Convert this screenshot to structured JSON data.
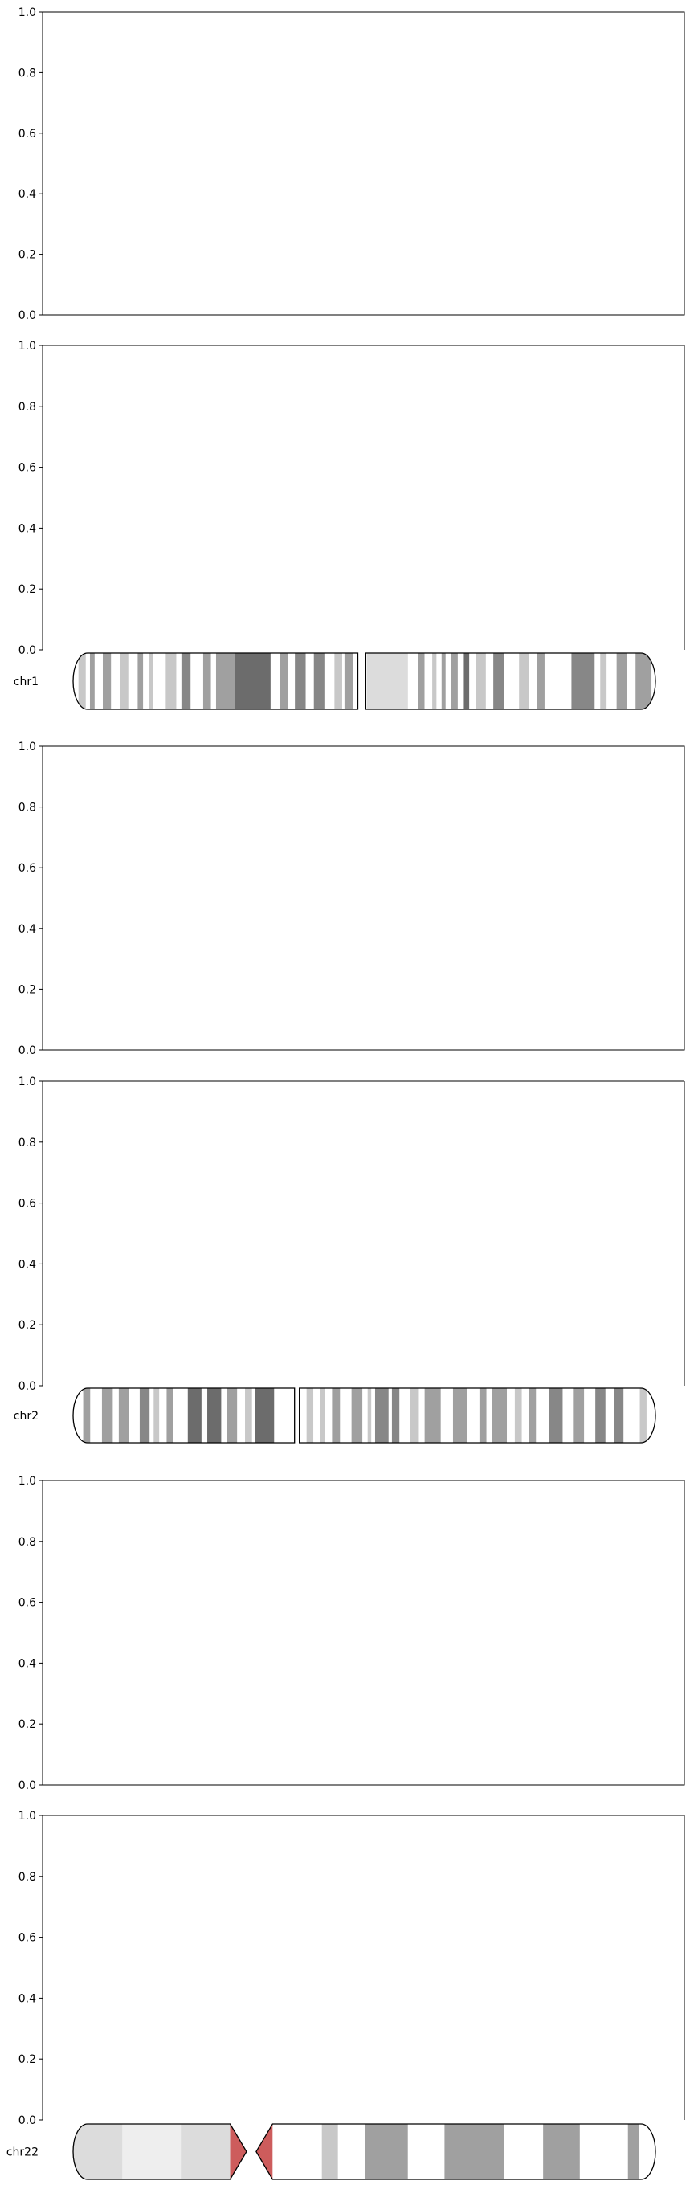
{
  "chart_data": [
    {
      "type": "line",
      "panel": "chr1-upper",
      "series": [],
      "ylim": [
        0,
        1
      ],
      "yticks": [
        "0.0",
        "0.2",
        "0.4",
        "0.6",
        "0.8",
        "1.0"
      ],
      "grid": false
    },
    {
      "type": "line",
      "panel": "chr1-lower",
      "series": [],
      "ylim": [
        0,
        1
      ],
      "yticks": [
        "0.0",
        "0.2",
        "0.4",
        "0.6",
        "0.8",
        "1.0"
      ],
      "grid": false,
      "ideogram": {
        "label": "chr1",
        "length": 248.9,
        "centromere": [
          121.7,
          125.1
        ],
        "bands": [
          [
            2.3,
            5.4,
            "gpos25"
          ],
          [
            7.2,
            9.2,
            "gpos50"
          ],
          [
            12.7,
            16.2,
            "gpos50"
          ],
          [
            20.0,
            23.6,
            "gpos25"
          ],
          [
            27.6,
            29.9,
            "gpos50"
          ],
          [
            32.3,
            34.3,
            "gpos25"
          ],
          [
            39.6,
            44.1,
            "gpos25"
          ],
          [
            46.3,
            50.2,
            "gpos75"
          ],
          [
            55.6,
            58.9,
            "gpos50"
          ],
          [
            61.1,
            72.8,
            "gpos50"
          ],
          [
            69.3,
            84.4,
            "gpos100"
          ],
          [
            88.3,
            91.7,
            "gpos50"
          ],
          [
            94.8,
            99.4,
            "gpos75"
          ],
          [
            102.9,
            107.4,
            "gpos75"
          ],
          [
            111.7,
            115.0,
            "gpos25"
          ],
          [
            116.0,
            119.6,
            "gpos50"
          ],
          [
            125.6,
            143.1,
            "gvar"
          ],
          [
            147.5,
            150.2,
            "gpos50"
          ],
          [
            153.5,
            155.3,
            "gpos25"
          ],
          [
            157.5,
            159.2,
            "gpos50"
          ],
          [
            161.7,
            164.4,
            "gpos50"
          ],
          [
            167.0,
            169.3,
            "gpos100"
          ],
          [
            172.1,
            176.4,
            "gpos25"
          ],
          [
            179.6,
            184.2,
            "gpos75"
          ],
          [
            190.6,
            194.9,
            "gpos25"
          ],
          [
            198.3,
            201.5,
            "gpos50"
          ],
          [
            213.0,
            222.9,
            "gpos75"
          ],
          [
            225.3,
            228.0,
            "gpos25"
          ],
          [
            232.3,
            236.7,
            "gpos50"
          ],
          [
            240.4,
            247.2,
            "gpos50"
          ]
        ]
      }
    },
    {
      "type": "line",
      "panel": "chr2-upper",
      "series": [],
      "ylim": [
        0,
        1
      ],
      "yticks": [
        "0.0",
        "0.2",
        "0.4",
        "0.6",
        "0.8",
        "1.0"
      ],
      "grid": false
    },
    {
      "type": "line",
      "panel": "chr2-lower",
      "series": [],
      "ylim": [
        0,
        1
      ],
      "yticks": [
        "0.0",
        "0.2",
        "0.4",
        "0.6",
        "0.8",
        "1.0"
      ],
      "grid": false,
      "ideogram": {
        "label": "chr2",
        "length": 242.2,
        "centromere": [
          92.1,
          94.1
        ],
        "bands": [
          [
            4.2,
            7.1,
            "gpos50"
          ],
          [
            12.0,
            16.5,
            "gpos50"
          ],
          [
            19.0,
            23.3,
            "gpos50"
          ],
          [
            27.7,
            31.8,
            "gpos75"
          ],
          [
            33.5,
            35.8,
            "gpos25"
          ],
          [
            38.9,
            41.5,
            "gpos50"
          ],
          [
            47.7,
            53.4,
            "gpos100"
          ],
          [
            55.8,
            61.6,
            "gpos100"
          ],
          [
            64.0,
            68.2,
            "gpos50"
          ],
          [
            71.5,
            74.4,
            "gpos25"
          ],
          [
            75.7,
            83.6,
            "gpos100"
          ],
          [
            97.1,
            99.9,
            "gpos25"
          ],
          [
            102.7,
            104.6,
            "gpos25"
          ],
          [
            107.7,
            111.0,
            "gpos50"
          ],
          [
            115.8,
            120.3,
            "gpos50"
          ],
          [
            122.5,
            124.0,
            "gpos25"
          ],
          [
            125.6,
            131.2,
            "gpos75"
          ],
          [
            132.6,
            135.7,
            "gpos75"
          ],
          [
            140.2,
            143.8,
            "gpos25"
          ],
          [
            146.2,
            152.9,
            "gpos50"
          ],
          [
            158.0,
            163.8,
            "gpos50"
          ],
          [
            169.0,
            171.9,
            "gpos50"
          ],
          [
            174.3,
            180.4,
            "gpos50"
          ],
          [
            183.7,
            186.6,
            "gpos25"
          ],
          [
            189.7,
            192.5,
            "gpos50"
          ],
          [
            198.0,
            203.6,
            "gpos75"
          ],
          [
            207.9,
            212.5,
            "gpos50"
          ],
          [
            217.2,
            221.4,
            "gpos75"
          ],
          [
            225.1,
            228.9,
            "gpos75"
          ],
          [
            235.7,
            238.5,
            "gpos25"
          ]
        ]
      }
    },
    {
      "type": "line",
      "panel": "chr22-upper",
      "series": [],
      "ylim": [
        0,
        1
      ],
      "yticks": [
        "0.0",
        "0.2",
        "0.4",
        "0.6",
        "0.8",
        "1.0"
      ],
      "grid": false
    },
    {
      "type": "line",
      "panel": "chr22-lower",
      "series": [],
      "ylim": [
        0,
        1
      ],
      "yticks": [
        "0.0",
        "0.2",
        "0.4",
        "0.6",
        "0.8",
        "1.0"
      ],
      "grid": false,
      "ideogram": {
        "label": "chr22",
        "length": 50.8,
        "centromere": [
          13.7,
          17.4
        ],
        "bands": [
          [
            0.0,
            4.3,
            "gvar"
          ],
          [
            4.3,
            9.4,
            "stalk"
          ],
          [
            9.4,
            13.7,
            "gvar"
          ],
          [
            13.7,
            17.4,
            "acen"
          ],
          [
            21.7,
            23.1,
            "gpos25"
          ],
          [
            25.5,
            29.2,
            "gpos50"
          ],
          [
            32.4,
            37.6,
            "gpos50"
          ],
          [
            41.0,
            44.2,
            "gpos50"
          ],
          [
            48.4,
            49.4,
            "gpos50"
          ]
        ]
      }
    }
  ],
  "colors": {
    "gneg": "#ffffff",
    "gpos25": "#c8c8c8",
    "gpos50": "#a0a0a0",
    "gpos75": "#878787",
    "gpos100": "#6c6c6c",
    "gvar": "#dcdcdc",
    "stalk": "#eeeeee",
    "acen": "#cd5c5c",
    "outline": "#000000",
    "spine": "#000000"
  }
}
